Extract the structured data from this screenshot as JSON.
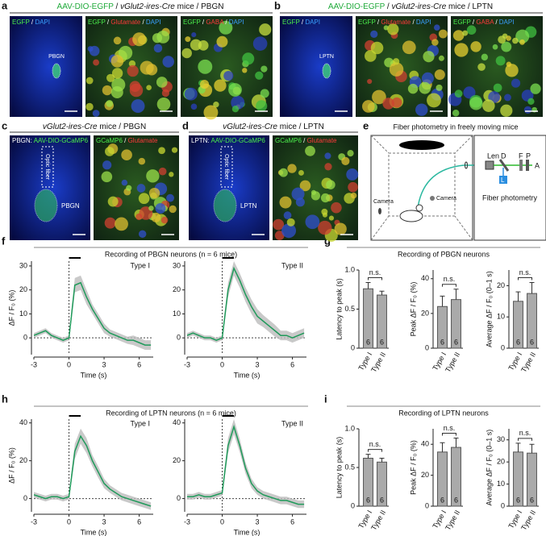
{
  "panel_labels": [
    "a",
    "b",
    "c",
    "d",
    "e",
    "f",
    "g",
    "h",
    "i"
  ],
  "panel_a": {
    "title": [
      {
        "text": "AAV-DIO-EGFP",
        "color": "#1faa3a"
      },
      {
        "text": " / "
      },
      {
        "text": "vGlut2-ires-Cre",
        "italic": true
      },
      {
        "text": " mice / PBGN"
      }
    ],
    "images": [
      [
        {
          "text": "EGFP",
          "color": "#4cf04c"
        },
        {
          "text": " / ",
          "color": "#fff"
        },
        {
          "text": "DAPI",
          "color": "#39a0ff"
        }
      ],
      [
        {
          "text": "EGFP",
          "color": "#4cf04c"
        },
        {
          "text": " / ",
          "color": "#fff"
        },
        {
          "text": "Glutamate",
          "color": "#ff3a3a"
        },
        {
          "text": " / ",
          "color": "#fff"
        },
        {
          "text": "DAPI",
          "color": "#39a0ff"
        }
      ],
      [
        {
          "text": "EGFP",
          "color": "#4cf04c"
        },
        {
          "text": " / ",
          "color": "#fff"
        },
        {
          "text": "GABA",
          "color": "#ff3a3a"
        },
        {
          "text": " / ",
          "color": "#fff"
        },
        {
          "text": "DAPI",
          "color": "#39a0ff"
        }
      ]
    ],
    "region": "PBGN"
  },
  "panel_b": {
    "title": [
      {
        "text": "AAV-DIO-EGFP",
        "color": "#1faa3a"
      },
      {
        "text": " / "
      },
      {
        "text": "vGlut2-ires-Cre",
        "italic": true
      },
      {
        "text": " mice / LPTN"
      }
    ],
    "images": [
      [
        {
          "text": "EGFP",
          "color": "#4cf04c"
        },
        {
          "text": " / ",
          "color": "#fff"
        },
        {
          "text": "DAPI",
          "color": "#39a0ff"
        }
      ],
      [
        {
          "text": "EGFP",
          "color": "#4cf04c"
        },
        {
          "text": " / ",
          "color": "#fff"
        },
        {
          "text": "Glutamate",
          "color": "#ff3a3a"
        },
        {
          "text": " / ",
          "color": "#fff"
        },
        {
          "text": "DAPI",
          "color": "#39a0ff"
        }
      ],
      [
        {
          "text": "EGFP",
          "color": "#4cf04c"
        },
        {
          "text": " / ",
          "color": "#fff"
        },
        {
          "text": "GABA",
          "color": "#ff3a3a"
        },
        {
          "text": " / ",
          "color": "#fff"
        },
        {
          "text": "DAPI",
          "color": "#39a0ff"
        }
      ]
    ],
    "region": "LPTN"
  },
  "panel_c": {
    "title": [
      {
        "text": "vGlut2-ires-Cre",
        "italic": true
      },
      {
        "text": " mice / PBGN"
      }
    ],
    "images": [
      [
        {
          "text": "PBGN: ",
          "color": "#fff"
        },
        {
          "text": "AAV-DIO-GCaMP6",
          "color": "#4cf04c"
        }
      ],
      [
        {
          "text": "GCaMP6",
          "color": "#4cf04c"
        },
        {
          "text": " / ",
          "color": "#fff"
        },
        {
          "text": "Glutamate",
          "color": "#ff3a3a"
        }
      ]
    ],
    "fiber": "Optic fiber",
    "region": "PBGN"
  },
  "panel_d": {
    "title": [
      {
        "text": "vGlut2-ires-Cre",
        "italic": true
      },
      {
        "text": " mice / LPTN"
      }
    ],
    "images": [
      [
        {
          "text": "LPTN: ",
          "color": "#fff"
        },
        {
          "text": "AAV-DIO-GCaMP6",
          "color": "#4cf04c"
        }
      ],
      [
        {
          "text": "GCaMP6",
          "color": "#4cf04c"
        },
        {
          "text": " / ",
          "color": "#fff"
        },
        {
          "text": "Glutamate",
          "color": "#ff3a3a"
        }
      ]
    ],
    "fiber": "Optic fiber",
    "region": "LPTN"
  },
  "panel_e": {
    "title": "Fiber photometry in freely moving mice",
    "camera_left": "Camera",
    "camera_right": "Camera",
    "len": "Len",
    "d": "D",
    "l": "L",
    "f": "F",
    "p": "P",
    "a": "A",
    "box": "Fiber photometry"
  },
  "panel_titles": {
    "f": "Recording of PBGN neurons (n = 6 mice)",
    "g": "Recording of PBGN neurons",
    "h": "Recording of LPTN neurons (n = 6 mice)",
    "i": "Recording of LPTN neurons"
  },
  "chart_data": [
    {
      "type": "line",
      "annotation": "Type I",
      "ylabel": "ΔF / F₀ (%)",
      "xlabel": "Time (s)",
      "color": "#1f9a5a",
      "x": [
        -3,
        -2.5,
        -2,
        -1.5,
        -1,
        -0.5,
        0,
        0.5,
        1,
        1.5,
        2,
        2.5,
        3,
        3.5,
        4,
        4.5,
        5,
        5.5,
        6,
        6.5,
        7
      ],
      "values": [
        1,
        2,
        3,
        1,
        0,
        -1,
        0,
        22,
        23,
        17,
        12,
        8,
        4,
        2,
        1,
        0,
        -1,
        -1,
        -2,
        -3,
        -3
      ],
      "sem": [
        1,
        1,
        1,
        1,
        1,
        1,
        1,
        3,
        3,
        3,
        2,
        2,
        2,
        1.5,
        1.5,
        1.5,
        1.5,
        2,
        2,
        2,
        2
      ],
      "xlim": [
        -3,
        7.2
      ],
      "xticks": [
        -3,
        0,
        3,
        6
      ],
      "ylim": [
        -7,
        32
      ],
      "yticks": [
        0,
        10,
        20,
        30
      ]
    },
    {
      "type": "line",
      "annotation": "Type II",
      "xlabel": "Time (s)",
      "color": "#1f9a5a",
      "x": [
        -3,
        -2.5,
        -2,
        -1.5,
        -1,
        -0.5,
        0,
        0.5,
        1,
        1.5,
        2,
        2.5,
        3,
        3.5,
        4,
        4.5,
        5,
        5.5,
        6,
        6.5,
        7
      ],
      "values": [
        1,
        2,
        1,
        0,
        0,
        -1,
        0,
        20,
        29,
        24,
        18,
        13,
        9,
        7,
        5,
        3,
        1,
        1,
        0,
        1,
        2
      ],
      "sem": [
        1,
        1,
        1,
        1,
        1,
        1,
        1,
        3,
        3,
        3,
        3,
        3,
        3,
        2.5,
        2.5,
        2.5,
        2,
        2,
        2,
        2,
        2
      ],
      "xlim": [
        -3,
        7.2
      ],
      "xticks": [
        -3,
        0,
        3,
        6
      ],
      "ylim": [
        -7,
        32
      ],
      "yticks": [
        0,
        10,
        20,
        30
      ]
    },
    {
      "type": "bar",
      "ylabel": "Latency to peak (s)",
      "categories": [
        "Type I",
        "Type II"
      ],
      "values": [
        0.76,
        0.68
      ],
      "error": [
        0.08,
        0.05
      ],
      "n_labels": [
        "6",
        "6"
      ],
      "annotation": "n.s.",
      "ylim": [
        0,
        1
      ],
      "yticks": [
        0,
        0.5,
        {
          "value": 1,
          "label": "1.0"
        }
      ]
    },
    {
      "type": "bar",
      "ylabel": "Peak ΔF / F₀ (%)",
      "categories": [
        "Type I",
        "Type II"
      ],
      "values": [
        24,
        28
      ],
      "error": [
        6,
        6
      ],
      "n_labels": [
        "6",
        "6"
      ],
      "annotation": "n.s.",
      "ylim": [
        0,
        45
      ],
      "yticks": [
        0,
        20,
        40
      ]
    },
    {
      "type": "bar",
      "ylabel": "Average ΔF / F₀ (0–1 s)",
      "categories": [
        "Type I",
        "Type II"
      ],
      "values": [
        15,
        17.5
      ],
      "error": [
        3,
        3.5
      ],
      "n_labels": [
        "6",
        "6"
      ],
      "annotation": "n.s.",
      "ylim": [
        0,
        25
      ],
      "yticks": [
        0,
        10,
        20
      ]
    },
    {
      "type": "line",
      "annotation": "Type I",
      "ylabel": "ΔF / F₀ (%)",
      "xlabel": "Time (s)",
      "color": "#1f9a5a",
      "x": [
        -3,
        -2.5,
        -2,
        -1.5,
        -1,
        -0.5,
        0,
        0.5,
        1,
        1.5,
        2,
        2.5,
        3,
        3.5,
        4,
        4.5,
        5,
        5.5,
        6,
        6.5,
        7
      ],
      "values": [
        2,
        1,
        0,
        1,
        1,
        0,
        1,
        25,
        33,
        28,
        20,
        14,
        8,
        5,
        3,
        1,
        0,
        -1,
        -2,
        -3,
        -4
      ],
      "sem": [
        1.5,
        1.5,
        1.5,
        1.5,
        1.5,
        1.5,
        1.5,
        4,
        4,
        4,
        3,
        3,
        2.5,
        2,
        2,
        2,
        2,
        2,
        2,
        2,
        2
      ],
      "xlim": [
        -3,
        7.2
      ],
      "xticks": [
        -3,
        0,
        3,
        6
      ],
      "ylim": [
        -7,
        42
      ],
      "yticks": [
        0,
        20,
        40
      ]
    },
    {
      "type": "line",
      "annotation": "Type II",
      "xlabel": "Time (s)",
      "color": "#1f9a5a",
      "x": [
        -3,
        -2.5,
        -2,
        -1.5,
        -1,
        -0.5,
        0,
        0.5,
        1,
        1.5,
        2,
        2.5,
        3,
        3.5,
        4,
        4.5,
        5,
        5.5,
        6,
        6.5,
        7
      ],
      "values": [
        1,
        1,
        2,
        1,
        1,
        2,
        3,
        28,
        38,
        28,
        16,
        8,
        4,
        2,
        1,
        0,
        -1,
        -1,
        -2,
        -3,
        -3
      ],
      "sem": [
        1.5,
        1.5,
        1.5,
        1.5,
        1.5,
        1.5,
        1.5,
        4,
        4,
        3.5,
        3,
        2.5,
        2,
        2,
        2,
        2,
        2,
        2,
        2,
        2,
        2
      ],
      "xlim": [
        -3,
        7.2
      ],
      "xticks": [
        -3,
        0,
        3,
        6
      ],
      "ylim": [
        -7,
        42
      ],
      "yticks": [
        0,
        20,
        40
      ]
    },
    {
      "type": "bar",
      "ylabel": "Latency to peak (s)",
      "categories": [
        "Type I",
        "Type II"
      ],
      "values": [
        0.62,
        0.57
      ],
      "error": [
        0.05,
        0.05
      ],
      "n_labels": [
        "6",
        "6"
      ],
      "annotation": "n.s.",
      "ylim": [
        0,
        1
      ],
      "yticks": [
        0,
        0.5,
        {
          "value": 1,
          "label": "1.0"
        }
      ]
    },
    {
      "type": "bar",
      "ylabel": "Peak ΔF / F₀ (%)",
      "categories": [
        "Type I",
        "Type II"
      ],
      "values": [
        35,
        38
      ],
      "error": [
        6,
        6
      ],
      "n_labels": [
        "6",
        "6"
      ],
      "annotation": "n.s.",
      "ylim": [
        0,
        50
      ],
      "yticks": [
        0,
        20,
        40
      ]
    },
    {
      "type": "bar",
      "ylabel": "Average ΔF / F₀ (0–1 s)",
      "categories": [
        "Type I",
        "Type II"
      ],
      "values": [
        24.5,
        24
      ],
      "error": [
        4,
        4
      ],
      "n_labels": [
        "6",
        "6"
      ],
      "annotation": "n.s.",
      "ylim": [
        0,
        35
      ],
      "yticks": [
        0,
        10,
        20,
        30
      ]
    }
  ]
}
